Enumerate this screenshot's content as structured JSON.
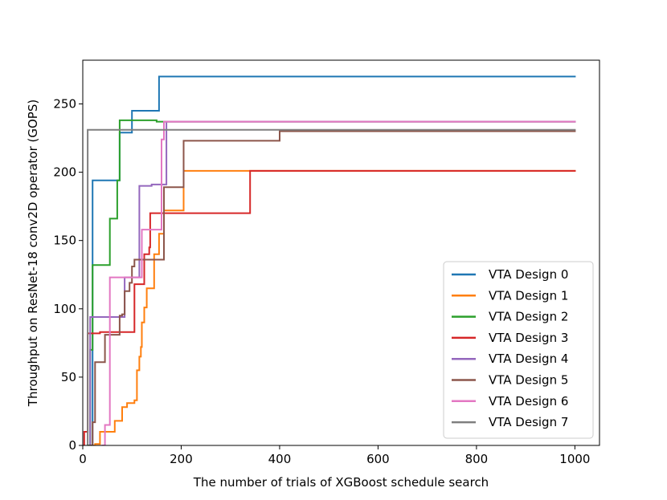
{
  "chart_data": {
    "type": "line",
    "title": "",
    "xlabel": "The number of trials of XGBoost schedule search",
    "ylabel": "Throughput on ResNet-18 conv2D operator (GOPS)",
    "xlim": [
      0,
      1050
    ],
    "ylim": [
      0,
      282
    ],
    "xticks": [
      0,
      200,
      400,
      600,
      800,
      1000
    ],
    "yticks": [
      0,
      50,
      100,
      150,
      200,
      250
    ],
    "grid": false,
    "legend_position": "lower-right",
    "series": [
      {
        "name": "VTA Design 0",
        "color": "#1f77b4",
        "x": [
          10,
          20,
          20,
          75,
          75,
          80,
          80,
          100,
          100,
          155,
          155,
          1000
        ],
        "y": [
          0,
          0,
          194,
          194,
          229,
          229,
          229,
          229,
          245,
          245,
          270,
          270
        ]
      },
      {
        "name": "VTA Design 1",
        "color": "#ff7f0e",
        "x": [
          20,
          25,
          25,
          35,
          35,
          55,
          55,
          65,
          65,
          80,
          80,
          90,
          90,
          105,
          105,
          110,
          110,
          115,
          115,
          118,
          118,
          120,
          120,
          125,
          125,
          130,
          130,
          145,
          145,
          155,
          155,
          165,
          165,
          205,
          205,
          1000
        ],
        "y": [
          0,
          0,
          1,
          1,
          10,
          10,
          10,
          10,
          18,
          18,
          28,
          28,
          31,
          31,
          33,
          33,
          55,
          55,
          65,
          65,
          72,
          72,
          90,
          90,
          101,
          101,
          115,
          115,
          140,
          140,
          155,
          155,
          172,
          172,
          201,
          201
        ]
      },
      {
        "name": "VTA Design 2",
        "color": "#2ca02c",
        "x": [
          10,
          15,
          15,
          20,
          20,
          55,
          55,
          60,
          60,
          70,
          70,
          75,
          75,
          150,
          150,
          1000
        ],
        "y": [
          0,
          0,
          70,
          70,
          132,
          132,
          166,
          166,
          166,
          166,
          194,
          194,
          238,
          238,
          237,
          237
        ],
        "end_y": 237
      },
      {
        "name": "VTA Design 3",
        "color": "#d62728",
        "x": [
          3,
          3,
          10,
          10,
          35,
          35,
          105,
          105,
          110,
          110,
          125,
          125,
          135,
          135,
          137,
          137,
          145,
          145,
          160,
          160,
          340,
          340,
          1000
        ],
        "y": [
          0,
          10,
          10,
          82,
          82,
          83,
          83,
          118,
          118,
          118,
          118,
          140,
          140,
          145,
          145,
          170,
          170,
          170,
          170,
          170,
          170,
          201,
          201
        ]
      },
      {
        "name": "VTA Design 4",
        "color": "#9467bd",
        "x": [
          15,
          15,
          25,
          25,
          85,
          85,
          95,
          95,
          115,
          115,
          140,
          140,
          160,
          160,
          170,
          170,
          1000
        ],
        "y": [
          0,
          94,
          94,
          94,
          94,
          123,
          123,
          123,
          123,
          190,
          190,
          191,
          191,
          191,
          191,
          237,
          237
        ]
      },
      {
        "name": "VTA Design 5",
        "color": "#8c564b",
        "x": [
          15,
          20,
          20,
          25,
          25,
          45,
          45,
          75,
          75,
          80,
          80,
          85,
          85,
          95,
          95,
          100,
          100,
          105,
          105,
          115,
          115,
          150,
          150,
          165,
          165,
          205,
          205,
          400,
          400,
          1000
        ],
        "y": [
          0,
          0,
          17,
          17,
          61,
          61,
          81,
          81,
          95,
          95,
          96,
          96,
          113,
          113,
          119,
          119,
          131,
          131,
          136,
          136,
          136,
          136,
          136,
          136,
          189,
          189,
          223,
          223,
          230,
          230
        ]
      },
      {
        "name": "VTA Design 6",
        "color": "#e377c2",
        "x": [
          40,
          45,
          45,
          55,
          55,
          120,
          120,
          160,
          160,
          165,
          165,
          1000
        ],
        "y": [
          0,
          0,
          15,
          15,
          123,
          123,
          158,
          158,
          224,
          224,
          237,
          237
        ]
      },
      {
        "name": "VTA Design 7",
        "color": "#7f7f7f",
        "x": [
          10,
          10,
          1000
        ],
        "y": [
          0,
          231,
          231
        ]
      }
    ]
  }
}
